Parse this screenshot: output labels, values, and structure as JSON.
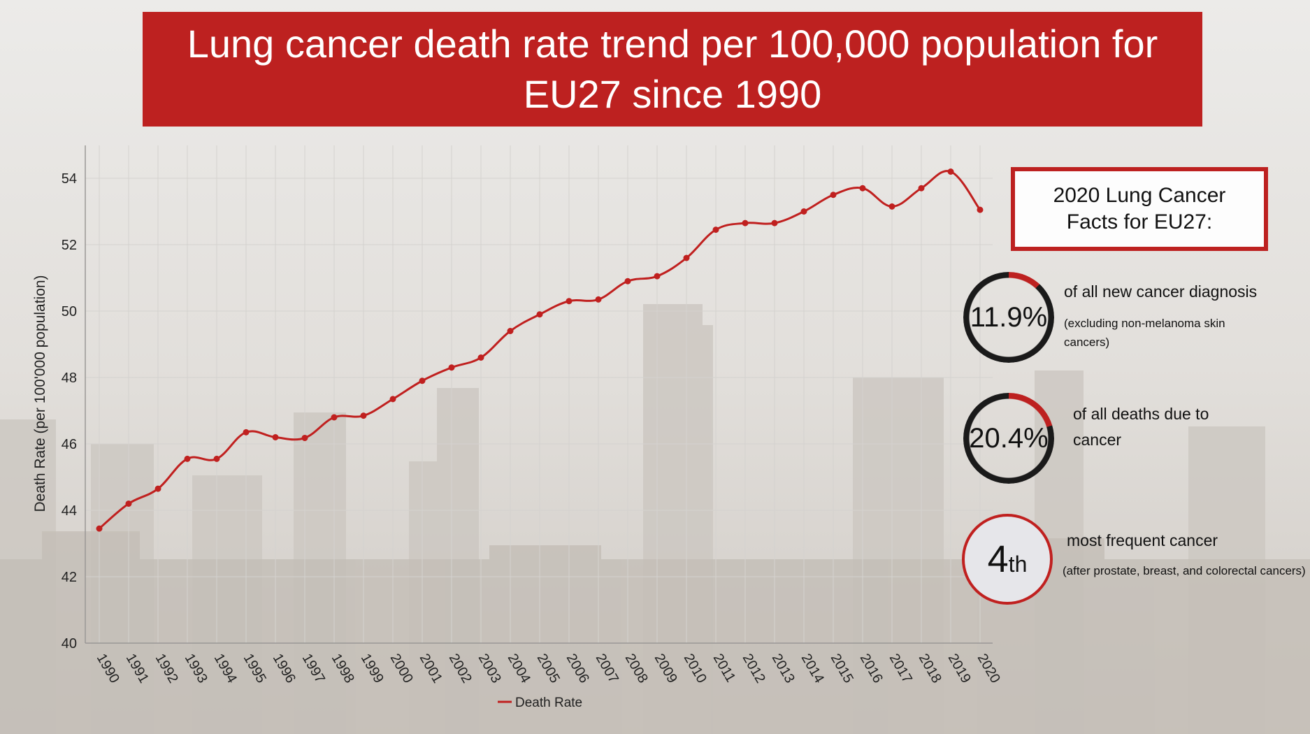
{
  "title": "Lung cancer death rate trend per 100,000 population for EU27 since 1990",
  "chart_data": {
    "type": "line",
    "title": "Lung cancer death rate trend per 100,000 population for EU27 since 1990",
    "xlabel": "",
    "ylabel": "Death Rate (per 100'000 population)",
    "ylim": [
      40,
      54
    ],
    "yticks": [
      40,
      42,
      44,
      46,
      48,
      50,
      52,
      54
    ],
    "grid": true,
    "legend": "bottom",
    "categories": [
      "1990",
      "1991",
      "1992",
      "1993",
      "1994",
      "1995",
      "1996",
      "1997",
      "1998",
      "1999",
      "2000",
      "2001",
      "2002",
      "2003",
      "2004",
      "2005",
      "2006",
      "2007",
      "2008",
      "2009",
      "2010",
      "2011",
      "2012",
      "2013",
      "2014",
      "2015",
      "2016",
      "2017",
      "2018",
      "2019",
      "2020"
    ],
    "series": [
      {
        "name": "Death Rate",
        "color": "#c0201f",
        "values": [
          43.45,
          44.2,
          44.65,
          45.55,
          45.55,
          46.35,
          46.2,
          46.18,
          46.8,
          46.85,
          47.35,
          47.9,
          48.3,
          48.6,
          49.4,
          49.9,
          50.3,
          50.35,
          50.9,
          51.05,
          51.6,
          52.45,
          52.65,
          52.65,
          53.0,
          53.5,
          53.7,
          53.15,
          53.7,
          54.2,
          53.05
        ]
      }
    ]
  },
  "facts": {
    "heading": "2020 Lung Cancer Facts for EU27:",
    "items": [
      {
        "value": "11.9%",
        "fraction": 0.119,
        "main": "of all new cancer diagnosis",
        "sub": "(excluding non-melanoma skin cancers)"
      },
      {
        "value": "20.4%",
        "fraction": 0.204,
        "main": "of all deaths due to cancer",
        "sub": ""
      },
      {
        "value": "4",
        "suffix": "th",
        "main": "most frequent cancer",
        "sub": "(after prostate, breast, and colorectal cancers)"
      }
    ]
  },
  "colors": {
    "accent": "#bd2120",
    "ring_dark": "#1a1a1a",
    "background": "#e9e7e4"
  }
}
